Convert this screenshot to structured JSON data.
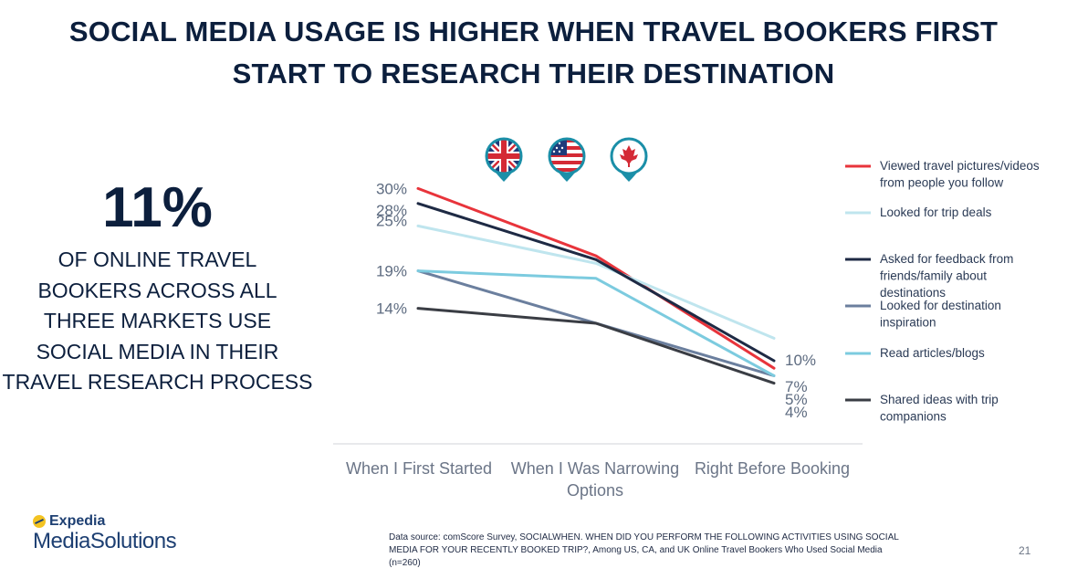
{
  "title_line1": "SOCIAL MEDIA USAGE IS HIGHER WHEN TRAVEL BOOKERS FIRST",
  "title_line2": "START TO RESEARCH THEIR DESTINATION",
  "stat": {
    "value": "11%",
    "lines": [
      "OF ONLINE TRAVEL",
      "BOOKERS ACROSS ALL",
      "THREE MARKETS USE",
      "SOCIAL MEDIA IN THEIR",
      "TRAVEL RESEARCH PROCESS"
    ]
  },
  "markets": [
    {
      "name": "uk-flag-pin-icon"
    },
    {
      "name": "us-flag-pin-icon"
    },
    {
      "name": "canada-flag-pin-icon"
    }
  ],
  "chart_data": {
    "type": "line",
    "categories": [
      "When I First Started",
      "When I Was Narrowing Options",
      "Right Before Booking"
    ],
    "category_label_lines": [
      [
        "When I First Started"
      ],
      [
        "When I Was Narrowing",
        "Options"
      ],
      [
        "Right Before Booking"
      ]
    ],
    "series": [
      {
        "name": "Viewed travel pictures/videos from people you follow",
        "legend_lines": [
          "Viewed travel pictures/videos",
          "from people you follow"
        ],
        "color": "#e8343b",
        "values": [
          30,
          21,
          6
        ]
      },
      {
        "name": "Looked for trip deals",
        "legend_lines": [
          "Looked for trip deals"
        ],
        "color": "#bfe5ee",
        "values": [
          25,
          20,
          10
        ]
      },
      {
        "name": "Asked for feedback from friends/family about destinations",
        "legend_lines": [
          "Asked for feedback from",
          "friends/family about",
          "destinations"
        ],
        "color": "#1e2a44",
        "values": [
          28,
          20.5,
          7
        ]
      },
      {
        "name": "Looked for destination inspiration",
        "legend_lines": [
          "Looked for destination",
          "inspiration"
        ],
        "color": "#6b7f9e",
        "values": [
          19,
          12,
          5
        ]
      },
      {
        "name": "Read articles/blogs",
        "legend_lines": [
          "Read articles/blogs"
        ],
        "color": "#7ccbdf",
        "values": [
          19,
          18,
          5
        ]
      },
      {
        "name": "Shared ideas with trip companions",
        "legend_lines": [
          "Shared ideas with trip",
          "companions"
        ],
        "color": "#3a3d44",
        "values": [
          14,
          12,
          4
        ]
      }
    ],
    "start_labels": [
      "30%",
      "28%",
      "25%",
      "19%",
      "14%"
    ],
    "start_label_values": [
      30,
      28,
      25,
      19,
      14
    ],
    "end_labels": [
      "10%",
      "7%",
      "5%",
      "4%"
    ],
    "end_label_values": [
      10,
      7,
      5,
      4
    ],
    "legend_placement": "right",
    "grid": false
  },
  "logo": {
    "line1": "Expedia",
    "line2": "MediaSolutions"
  },
  "source": "Data source: comScore Survey, SOCIALWHEN. WHEN DID YOU PERFORM THE FOLLOWING ACTIVITIES USING SOCIAL MEDIA FOR YOUR RECENTLY BOOKED TRIP?, Among US, CA, and UK Online Travel Bookers Who Used Social Media (n=260)",
  "page_number": "21"
}
